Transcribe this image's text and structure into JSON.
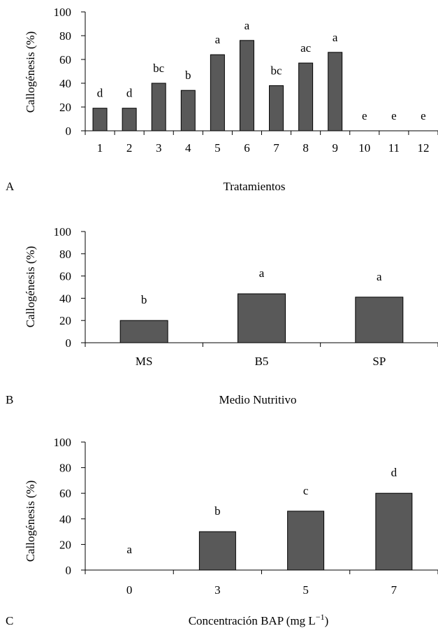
{
  "colors": {
    "bar_fill": "#595959",
    "bar_stroke": "#000000",
    "axis": "#000000"
  },
  "chart_data": [
    {
      "panel": "A",
      "type": "bar",
      "ylabel": "Callogénesis (%)",
      "xlabel": "Tratamientos",
      "ylim": [
        0,
        100
      ],
      "yticks": [
        "0",
        "20",
        "40",
        "60",
        "80",
        "100"
      ],
      "grid": false,
      "categories": [
        "1",
        "2",
        "3",
        "4",
        "5",
        "6",
        "7",
        "8",
        "9",
        "10",
        "11",
        "12"
      ],
      "values": [
        19,
        19,
        40,
        34,
        64,
        76,
        38,
        57,
        66,
        0,
        0,
        0
      ],
      "letters": [
        "d",
        "d",
        "bc",
        "b",
        "a",
        "a",
        "bc",
        "ac",
        "a",
        "e",
        "e",
        "e"
      ]
    },
    {
      "panel": "B",
      "type": "bar",
      "ylabel": "Callogénesis (%)",
      "xlabel": "Medio Nutritivo",
      "ylim": [
        0,
        100
      ],
      "yticks": [
        "0",
        "20",
        "40",
        "60",
        "80",
        "100"
      ],
      "grid": false,
      "categories": [
        "MS",
        "B5",
        "SP"
      ],
      "values": [
        20,
        44,
        41
      ],
      "letters": [
        "b",
        "a",
        "a"
      ]
    },
    {
      "panel": "C",
      "type": "bar",
      "ylabel": "Callogénesis (%)",
      "xlabel": "Concentración BAP (mg L",
      "xlabel_sup": "−1",
      "xlabel_close": ")",
      "ylim": [
        0,
        100
      ],
      "yticks": [
        "0",
        "20",
        "40",
        "60",
        "80",
        "100"
      ],
      "grid": false,
      "categories": [
        "0",
        "3",
        "5",
        "7"
      ],
      "values": [
        0,
        30,
        46,
        60
      ],
      "letters": [
        "a",
        "b",
        "c",
        "d"
      ]
    }
  ]
}
